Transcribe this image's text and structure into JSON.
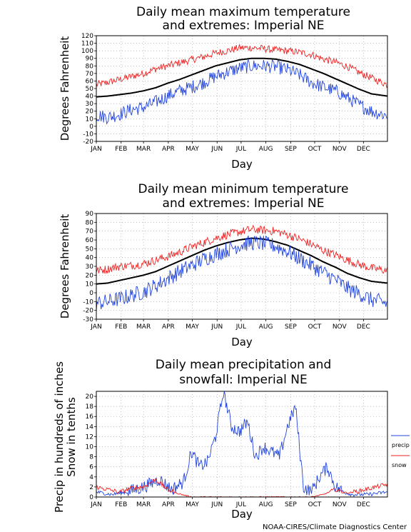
{
  "credit": "NOAA-CIRES/Climate Diagnostics Center",
  "chart_data": [
    {
      "type": "line",
      "title": [
        "Daily mean maximum temperature",
        "and extremes: Imperial NE"
      ],
      "xlabel": "Day",
      "ylabel": "Degrees Fahrenheit",
      "months": [
        "JAN",
        "FEB",
        "MAR",
        "APR",
        "MAY",
        "JUN",
        "JUL",
        "AUG",
        "SEP",
        "OCT",
        "NOV",
        "DEC"
      ],
      "ylim": [
        -20,
        120
      ],
      "yticks": [
        -20,
        -10,
        0,
        10,
        20,
        30,
        40,
        50,
        60,
        70,
        80,
        90,
        100,
        110,
        120
      ],
      "grid": true,
      "series": [
        {
          "color": "#ee2222",
          "key": [
            [
              1,
              55
            ],
            [
              15,
              58
            ],
            [
              30,
              62
            ],
            [
              45,
              66
            ],
            [
              60,
              70
            ],
            [
              75,
              76
            ],
            [
              90,
              80
            ],
            [
              105,
              84
            ],
            [
              120,
              88
            ],
            [
              135,
              92
            ],
            [
              150,
              97
            ],
            [
              165,
              100
            ],
            [
              180,
              104
            ],
            [
              195,
              104
            ],
            [
              210,
              103
            ],
            [
              225,
              101
            ],
            [
              240,
              100
            ],
            [
              255,
              98
            ],
            [
              270,
              95
            ],
            [
              285,
              89
            ],
            [
              300,
              85
            ],
            [
              315,
              79
            ],
            [
              330,
              71
            ],
            [
              345,
              64
            ],
            [
              365,
              55
            ]
          ]
        },
        {
          "color": "#000000",
          "key": [
            [
              1,
              39
            ],
            [
              15,
              40
            ],
            [
              30,
              42
            ],
            [
              45,
              44
            ],
            [
              60,
              47
            ],
            [
              75,
              51
            ],
            [
              90,
              57
            ],
            [
              105,
              62
            ],
            [
              120,
              68
            ],
            [
              135,
              74
            ],
            [
              150,
              80
            ],
            [
              165,
              84
            ],
            [
              180,
              88
            ],
            [
              195,
              90
            ],
            [
              210,
              90
            ],
            [
              225,
              89
            ],
            [
              240,
              86
            ],
            [
              255,
              82
            ],
            [
              270,
              76
            ],
            [
              285,
              70
            ],
            [
              300,
              63
            ],
            [
              315,
              56
            ],
            [
              330,
              49
            ],
            [
              345,
              43
            ],
            [
              365,
              40
            ]
          ]
        },
        {
          "color": "#2244dd",
          "key": [
            [
              1,
              15
            ],
            [
              15,
              12
            ],
            [
              30,
              16
            ],
            [
              45,
              22
            ],
            [
              60,
              25
            ],
            [
              75,
              32
            ],
            [
              90,
              40
            ],
            [
              105,
              47
            ],
            [
              120,
              52
            ],
            [
              135,
              58
            ],
            [
              150,
              66
            ],
            [
              165,
              72
            ],
            [
              180,
              77
            ],
            [
              195,
              80
            ],
            [
              210,
              80
            ],
            [
              225,
              79
            ],
            [
              240,
              75
            ],
            [
              255,
              68
            ],
            [
              270,
              58
            ],
            [
              285,
              52
            ],
            [
              300,
              47
            ],
            [
              315,
              38
            ],
            [
              330,
              28
            ],
            [
              345,
              20
            ],
            [
              365,
              14
            ]
          ]
        }
      ]
    },
    {
      "type": "line",
      "title": [
        "Daily mean minimum temperature",
        "and extremes: Imperial NE"
      ],
      "xlabel": "Day",
      "ylabel": "Degrees Fahrenheit",
      "months": [
        "JAN",
        "FEB",
        "MAR",
        "APR",
        "MAY",
        "JUN",
        "JUL",
        "AUG",
        "SEP",
        "OCT",
        "NOV",
        "DEC"
      ],
      "ylim": [
        -30,
        90
      ],
      "yticks": [
        -30,
        -20,
        -10,
        0,
        10,
        20,
        30,
        40,
        50,
        60,
        70,
        80,
        90
      ],
      "grid": true,
      "series": [
        {
          "color": "#ee2222",
          "key": [
            [
              1,
              25
            ],
            [
              15,
              27
            ],
            [
              30,
              30
            ],
            [
              45,
              31
            ],
            [
              60,
              33
            ],
            [
              75,
              37
            ],
            [
              90,
              41
            ],
            [
              105,
              46
            ],
            [
              120,
              52
            ],
            [
              135,
              57
            ],
            [
              150,
              62
            ],
            [
              165,
              66
            ],
            [
              180,
              69
            ],
            [
              195,
              72
            ],
            [
              210,
              71
            ],
            [
              225,
              70
            ],
            [
              240,
              66
            ],
            [
              255,
              61
            ],
            [
              270,
              55
            ],
            [
              285,
              48
            ],
            [
              300,
              43
            ],
            [
              315,
              37
            ],
            [
              330,
              32
            ],
            [
              345,
              28
            ],
            [
              365,
              25
            ]
          ]
        },
        {
          "color": "#000000",
          "key": [
            [
              1,
              10
            ],
            [
              15,
              11
            ],
            [
              30,
              14
            ],
            [
              45,
              17
            ],
            [
              60,
              20
            ],
            [
              75,
              24
            ],
            [
              90,
              30
            ],
            [
              105,
              36
            ],
            [
              120,
              42
            ],
            [
              135,
              48
            ],
            [
              150,
              53
            ],
            [
              165,
              57
            ],
            [
              180,
              60
            ],
            [
              195,
              62
            ],
            [
              210,
              61
            ],
            [
              225,
              58
            ],
            [
              240,
              54
            ],
            [
              255,
              48
            ],
            [
              270,
              42
            ],
            [
              285,
              35
            ],
            [
              300,
              29
            ],
            [
              315,
              22
            ],
            [
              330,
              17
            ],
            [
              345,
              13
            ],
            [
              365,
              11
            ]
          ]
        },
        {
          "color": "#2244dd",
          "key": [
            [
              1,
              -12
            ],
            [
              15,
              -10
            ],
            [
              30,
              -7
            ],
            [
              45,
              -3
            ],
            [
              60,
              1
            ],
            [
              75,
              8
            ],
            [
              90,
              16
            ],
            [
              105,
              24
            ],
            [
              120,
              31
            ],
            [
              135,
              38
            ],
            [
              150,
              44
            ],
            [
              165,
              49
            ],
            [
              180,
              54
            ],
            [
              195,
              57
            ],
            [
              210,
              56
            ],
            [
              225,
              53
            ],
            [
              240,
              47
            ],
            [
              255,
              39
            ],
            [
              270,
              31
            ],
            [
              285,
              23
            ],
            [
              300,
              15
            ],
            [
              315,
              5
            ],
            [
              330,
              -1
            ],
            [
              345,
              -8
            ],
            [
              365,
              -12
            ]
          ]
        }
      ]
    },
    {
      "type": "line",
      "title": [
        "Daily mean precipitation and",
        "snowfall: Imperial NE"
      ],
      "xlabel": "Day",
      "ylabel": [
        "Precip in hundreds of inches",
        "Snow in tenths"
      ],
      "months": [
        "JAN",
        "FEB",
        "MAR",
        "APR",
        "MAY",
        "JUN",
        "JUL",
        "AUG",
        "SEP",
        "OCT",
        "NOV",
        "DEC"
      ],
      "ylim": [
        0,
        21
      ],
      "yticks": [
        0,
        2,
        4,
        6,
        8,
        10,
        12,
        14,
        16,
        18,
        20
      ],
      "grid": true,
      "legend": "right",
      "series": [
        {
          "name": "precip",
          "color": "#2244dd",
          "key": [
            [
              1,
              1
            ],
            [
              20,
              0.5
            ],
            [
              40,
              1
            ],
            [
              60,
              2
            ],
            [
              80,
              3.5
            ],
            [
              95,
              1.5
            ],
            [
              110,
              3
            ],
            [
              120,
              9
            ],
            [
              130,
              6
            ],
            [
              140,
              7
            ],
            [
              150,
              12
            ],
            [
              160,
              21
            ],
            [
              170,
              14
            ],
            [
              180,
              13
            ],
            [
              190,
              15
            ],
            [
              200,
              8
            ],
            [
              210,
              10
            ],
            [
              220,
              9
            ],
            [
              230,
              8
            ],
            [
              240,
              14
            ],
            [
              250,
              18
            ],
            [
              260,
              2
            ],
            [
              270,
              1
            ],
            [
              280,
              4
            ],
            [
              290,
              6
            ],
            [
              300,
              2
            ],
            [
              310,
              1
            ],
            [
              320,
              0.5
            ],
            [
              340,
              0.5
            ],
            [
              365,
              1
            ]
          ]
        },
        {
          "name": "snow",
          "color": "#ee2222",
          "key": [
            [
              1,
              2
            ],
            [
              15,
              1.5
            ],
            [
              30,
              1
            ],
            [
              45,
              1.8
            ],
            [
              60,
              2
            ],
            [
              75,
              3.5
            ],
            [
              90,
              1.5
            ],
            [
              105,
              0.6
            ],
            [
              120,
              0
            ],
            [
              270,
              0
            ],
            [
              285,
              0.5
            ],
            [
              300,
              1.5
            ],
            [
              315,
              0.8
            ],
            [
              330,
              1.2
            ],
            [
              345,
              1.8
            ],
            [
              365,
              2.5
            ]
          ]
        }
      ]
    }
  ]
}
